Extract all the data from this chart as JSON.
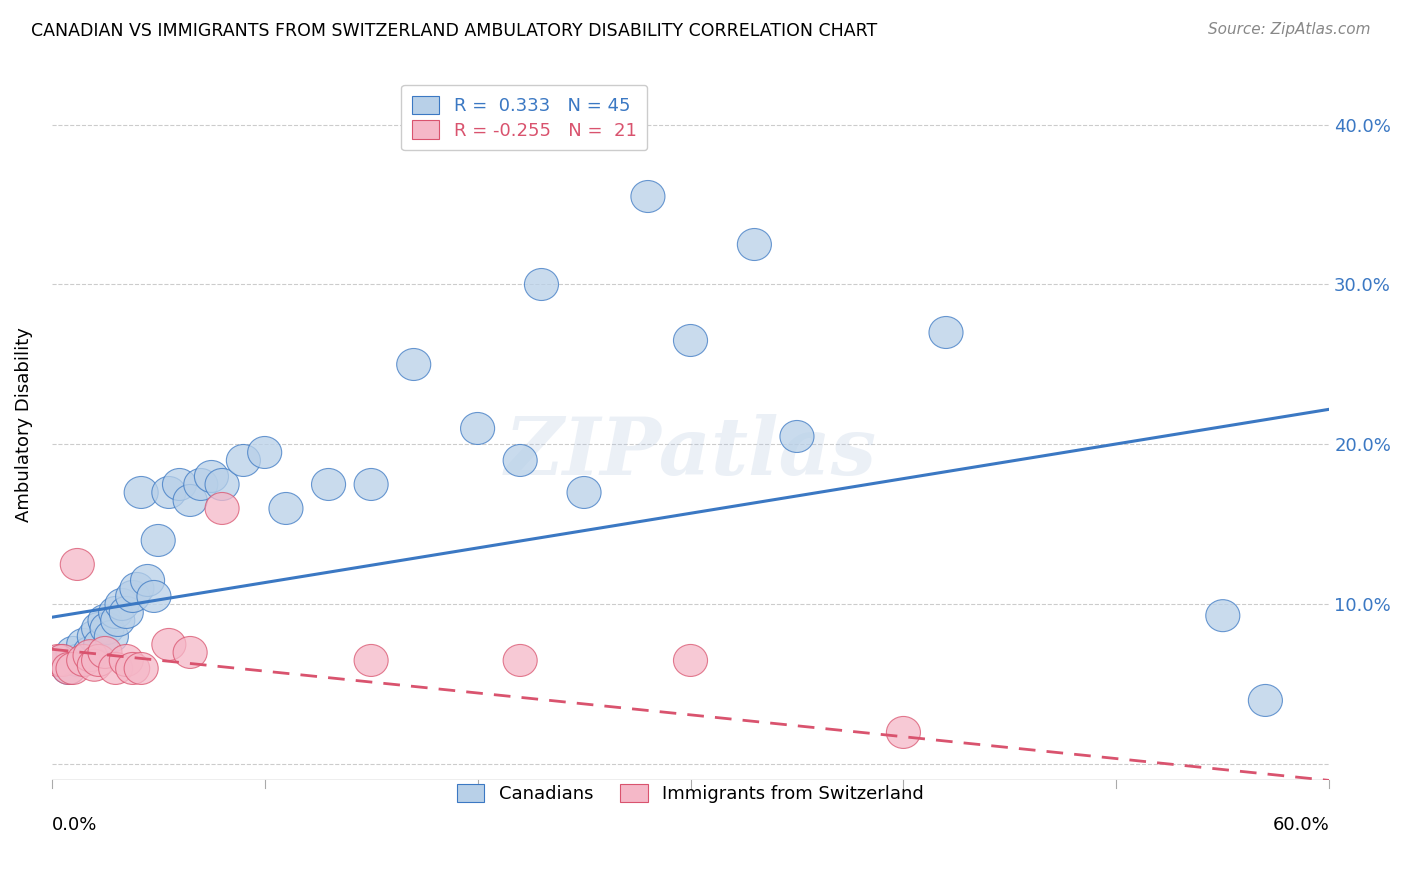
{
  "title": "CANADIAN VS IMMIGRANTS FROM SWITZERLAND AMBULATORY DISABILITY CORRELATION CHART",
  "source": "Source: ZipAtlas.com",
  "ylabel": "Ambulatory Disability",
  "y_ticks": [
    0.0,
    0.1,
    0.2,
    0.3,
    0.4
  ],
  "y_tick_labels": [
    "",
    "10.0%",
    "20.0%",
    "30.0%",
    "40.0%"
  ],
  "xmin": 0.0,
  "xmax": 0.6,
  "ymin": -0.01,
  "ymax": 0.435,
  "legend_r1": "R =  0.333   N = 45",
  "legend_r2": "R = -0.255   N =  21",
  "canadians_color": "#b8d0e8",
  "immigrants_color": "#f5b8c8",
  "trend_canadian_color": "#3b78c3",
  "trend_immigrant_color": "#d9536e",
  "trend_canadian_start_y": 0.092,
  "trend_canadian_end_y": 0.222,
  "trend_immigrant_start_y": 0.072,
  "trend_immigrant_end_y": -0.01,
  "canadians_x": [
    0.005,
    0.008,
    0.01,
    0.012,
    0.015,
    0.018,
    0.02,
    0.022,
    0.023,
    0.025,
    0.026,
    0.028,
    0.03,
    0.031,
    0.033,
    0.035,
    0.038,
    0.04,
    0.042,
    0.045,
    0.048,
    0.05,
    0.055,
    0.06,
    0.065,
    0.07,
    0.075,
    0.08,
    0.09,
    0.1,
    0.11,
    0.13,
    0.15,
    0.17,
    0.2,
    0.22,
    0.23,
    0.25,
    0.28,
    0.3,
    0.33,
    0.35,
    0.42,
    0.55,
    0.57
  ],
  "canadians_y": [
    0.065,
    0.06,
    0.07,
    0.065,
    0.075,
    0.07,
    0.08,
    0.085,
    0.075,
    0.09,
    0.085,
    0.08,
    0.095,
    0.09,
    0.1,
    0.095,
    0.105,
    0.11,
    0.17,
    0.115,
    0.105,
    0.14,
    0.17,
    0.175,
    0.165,
    0.175,
    0.18,
    0.175,
    0.19,
    0.195,
    0.16,
    0.175,
    0.175,
    0.25,
    0.21,
    0.19,
    0.3,
    0.17,
    0.355,
    0.265,
    0.325,
    0.205,
    0.27,
    0.093,
    0.04
  ],
  "immigrants_x": [
    0.003,
    0.005,
    0.008,
    0.01,
    0.012,
    0.015,
    0.018,
    0.02,
    0.022,
    0.025,
    0.03,
    0.035,
    0.038,
    0.042,
    0.055,
    0.065,
    0.08,
    0.15,
    0.22,
    0.3,
    0.4
  ],
  "immigrants_y": [
    0.065,
    0.065,
    0.06,
    0.06,
    0.125,
    0.065,
    0.068,
    0.062,
    0.065,
    0.07,
    0.06,
    0.065,
    0.06,
    0.06,
    0.075,
    0.07,
    0.16,
    0.065,
    0.065,
    0.065,
    0.02
  ]
}
